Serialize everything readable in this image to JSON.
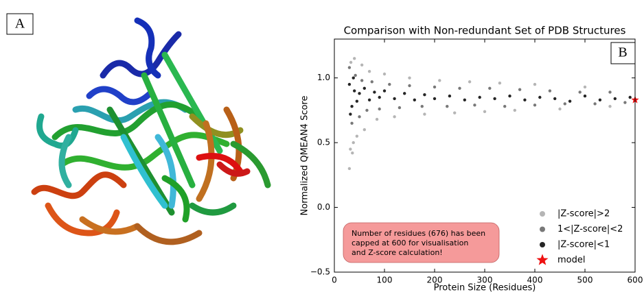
{
  "panel_labels": [
    "A",
    "B"
  ],
  "chart_data": {
    "type": "scatter",
    "title": "Comparison with Non-redundant Set of PDB Structures",
    "x_label": "Protein Size (Residues)",
    "y_label": "Normalized QMEAN4 Score",
    "xlim": [
      0,
      600
    ],
    "ylim": [
      -0.5,
      1.3
    ],
    "xticks": [
      0,
      100,
      200,
      300,
      400,
      500,
      600
    ],
    "yticks": [
      {
        "value": -0.5,
        "label": "−0.5"
      },
      {
        "value": 0,
        "label": "0.0"
      },
      {
        "value": 0.5,
        "label": "0.5"
      },
      {
        "value": 1,
        "label": "1.0"
      }
    ],
    "legend": "lower right",
    "annotation": [
      "Number of residues (676) has been",
      "capped at 600 for visualisation",
      "and Z-score calculation!"
    ],
    "series": [
      {
        "name": "|Z-score|>2",
        "color": "#b5b5b5",
        "marker": "circle",
        "x": [
          30,
          33,
          36,
          40,
          45,
          55,
          60,
          70,
          85,
          100,
          120,
          150,
          180,
          210,
          240,
          270,
          300,
          330,
          360,
          400,
          450,
          500,
          550,
          32,
          38
        ],
        "values": [
          0.3,
          1.12,
          0.42,
          1.15,
          0.55,
          1.1,
          0.6,
          1.05,
          0.68,
          1.03,
          0.7,
          1.0,
          0.72,
          0.98,
          0.73,
          0.97,
          0.74,
          0.96,
          0.75,
          0.95,
          0.76,
          0.93,
          0.78,
          0.45,
          0.5
        ]
      },
      {
        "name": "1<|Z-score|<2",
        "color": "#787878",
        "marker": "circle",
        "x": [
          30,
          35,
          42,
          50,
          55,
          65,
          75,
          90,
          110,
          130,
          150,
          175,
          200,
          225,
          250,
          280,
          310,
          340,
          370,
          400,
          430,
          460,
          490,
          520,
          550,
          580
        ],
        "values": [
          1.08,
          0.65,
          1.02,
          0.7,
          0.98,
          0.75,
          0.97,
          0.76,
          0.95,
          0.77,
          0.94,
          0.78,
          0.93,
          0.78,
          0.92,
          0.79,
          0.92,
          0.78,
          0.91,
          0.79,
          0.9,
          0.8,
          0.89,
          0.8,
          0.89,
          0.81
        ]
      },
      {
        "name": "|Z-score|<1",
        "color": "#252525",
        "marker": "circle",
        "x": [
          30,
          35,
          40,
          45,
          50,
          60,
          70,
          80,
          90,
          100,
          120,
          140,
          160,
          180,
          200,
          230,
          260,
          290,
          320,
          350,
          380,
          410,
          440,
          470,
          500,
          530,
          560,
          590,
          32,
          38
        ],
        "values": [
          0.95,
          0.78,
          0.9,
          0.82,
          0.88,
          0.92,
          0.83,
          0.89,
          0.85,
          0.9,
          0.84,
          0.88,
          0.83,
          0.87,
          0.84,
          0.86,
          0.83,
          0.85,
          0.84,
          0.86,
          0.83,
          0.85,
          0.84,
          0.82,
          0.86,
          0.83,
          0.84,
          0.85,
          0.72,
          1.0
        ]
      },
      {
        "name": "model",
        "color": "#ee1111",
        "marker": "star",
        "x": [
          600
        ],
        "values": [
          0.83
        ]
      }
    ]
  }
}
